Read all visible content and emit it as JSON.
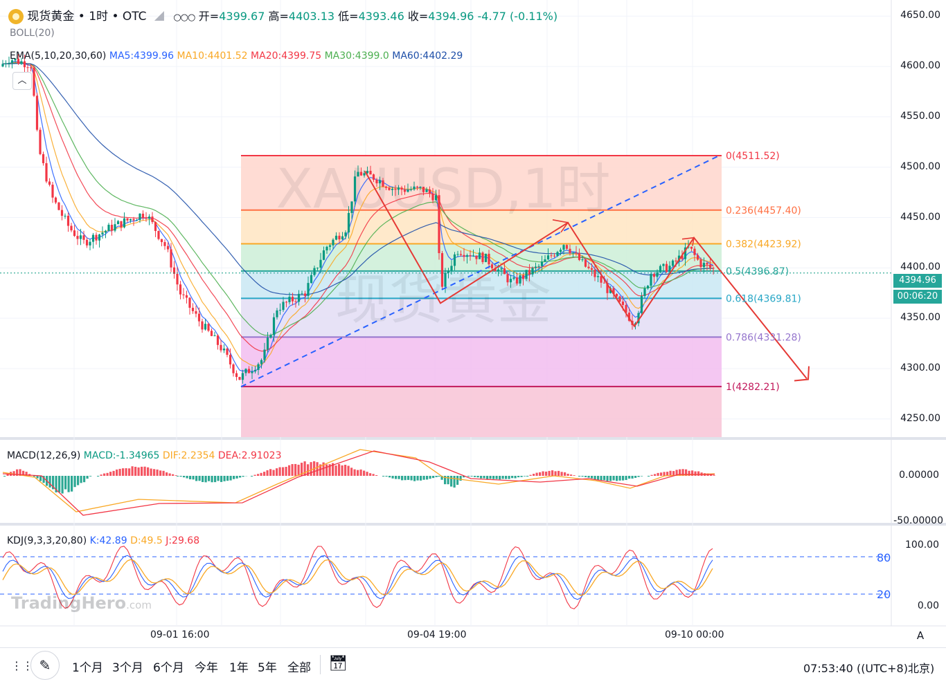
{
  "header": {
    "symbol_title": "现货黄金 • 1时 • OTC",
    "open_label": "开=",
    "open": "4399.67",
    "high_label": "高=",
    "high": "4403.13",
    "low_label": "低=",
    "low": "4393.46",
    "close_label": "收=",
    "close": "4394.96",
    "change": "-4.77 (-0.11%)",
    "boll": "BOLL(20)",
    "ema": "EMA(5,10,20,30,60)",
    "ma5": "MA5:4399.96",
    "ma10": "MA10:4401.52",
    "ma20": "MA20:4399.75",
    "ma30": "MA30:4399.0",
    "ma60": "MA60:4402.29",
    "dots": "○○○"
  },
  "watermark": {
    "symbol": "XAUUSD,1时",
    "name": "现货黄金",
    "brand": "TradingHero",
    "brand_suffix": ".com"
  },
  "colors": {
    "up": "#089981",
    "down": "#f23645",
    "ma5": "#2962ff",
    "ma10": "#f9a825",
    "ma20": "#f23645",
    "ma30": "#4caf50",
    "ma60": "#1e4fa8",
    "drawing": "#e53935",
    "trend": "#2962ff"
  },
  "price_axis": {
    "labels": [
      "4650.00",
      "4600.00",
      "4550.00",
      "4500.00",
      "4450.00",
      "4400.00",
      "4350.00",
      "4300.00",
      "4250.00"
    ],
    "current_price": "4394.96",
    "countdown": "00:06:20"
  },
  "fib": {
    "levels": [
      {
        "label": "0(4511.52)",
        "price": 4511.52,
        "color": "#f23645",
        "fill": "#ffd6cc"
      },
      {
        "label": "0.236(4457.40)",
        "price": 4457.4,
        "color": "#ff7043",
        "fill": "#ffe5c2"
      },
      {
        "label": "0.382(4423.92)",
        "price": 4423.92,
        "color": "#f9a825",
        "fill": "#cdeed7"
      },
      {
        "label": "0.5(4396.87)",
        "price": 4396.87,
        "color": "#26a69a",
        "fill": "#c9e8f3"
      },
      {
        "label": "0.618(4369.81)",
        "price": 4369.81,
        "color": "#26a6c6",
        "fill": "#e3ddf5"
      },
      {
        "label": "0.786(4331.28)",
        "price": 4331.28,
        "color": "#9575cd",
        "fill": "#f2bdf0"
      },
      {
        "label": "1(4282.21)",
        "price": 4282.21,
        "color": "#c2185b",
        "fill": "#f8c3d6"
      }
    ]
  },
  "macd": {
    "title": "MACD(12,26,9)",
    "macd": "MACD:-1.34965",
    "dif": "DIF:2.2354",
    "dea": "DEA:2.91023",
    "axis": [
      "0.00000",
      "-50.00000"
    ]
  },
  "kdj": {
    "title": "KDJ(9,3,3,20,80)",
    "k": "K:42.89",
    "d": "D:49.5",
    "j": "J:29.68",
    "axis": [
      "100.00",
      "0.00"
    ],
    "bands": [
      "80",
      "20"
    ]
  },
  "time_axis": {
    "labels": [
      "09-01 16:00",
      "09-04 19:00",
      "09-10 00:00"
    ],
    "auto": "A"
  },
  "bottom": {
    "ranges": [
      "1个月",
      "3个月",
      "6个月",
      "今年",
      "1年",
      "5年",
      "全部"
    ],
    "clock": "07:53:40 ((UTC+8)北京)"
  },
  "chart_data": {
    "type": "candlestick",
    "title": "现货黄金 • 1时 • OTC",
    "y_range": [
      4232,
      4666
    ],
    "last": {
      "open": 4399.67,
      "high": 4403.13,
      "low": 4393.46,
      "close": 4394.96
    }
  }
}
